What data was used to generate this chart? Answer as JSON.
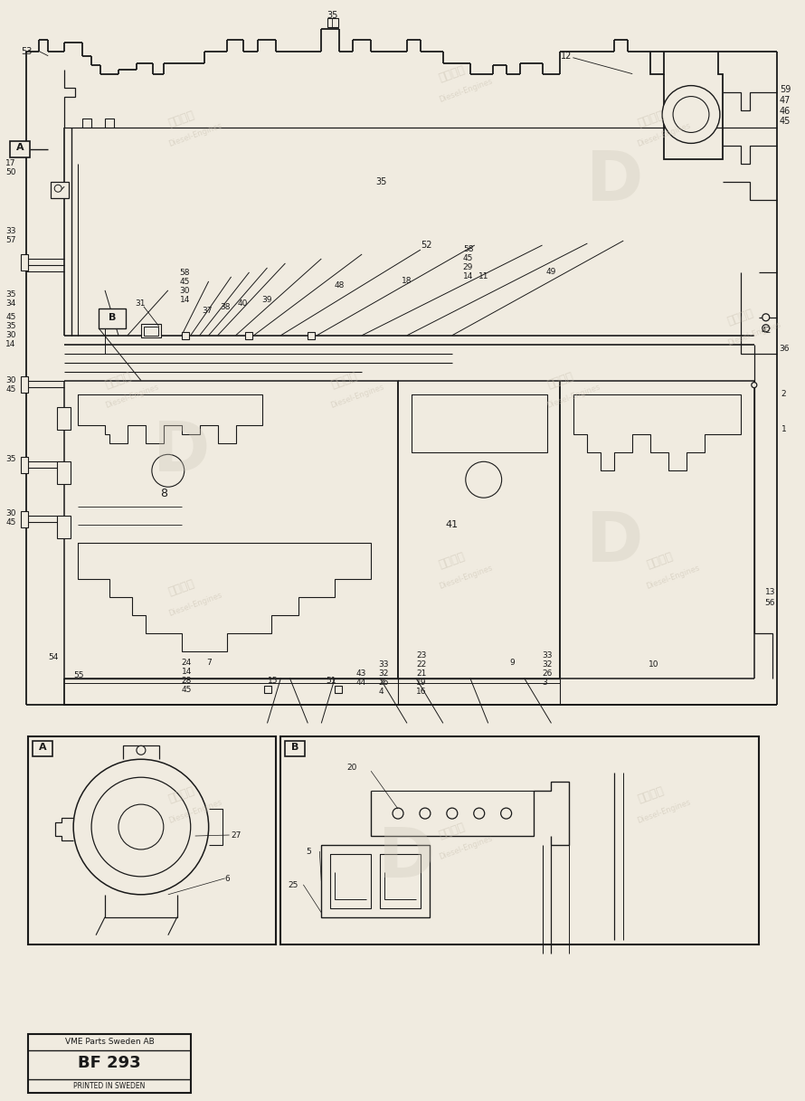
{
  "bg_color": "#f0ebe0",
  "line_color": "#1a1a1a",
  "drawing_number": "BF 293",
  "company": "VME Parts Sweden AB",
  "printed": "PRINTED IN SWEDEN",
  "fig_width": 8.9,
  "fig_height": 12.17,
  "dpi": 100
}
